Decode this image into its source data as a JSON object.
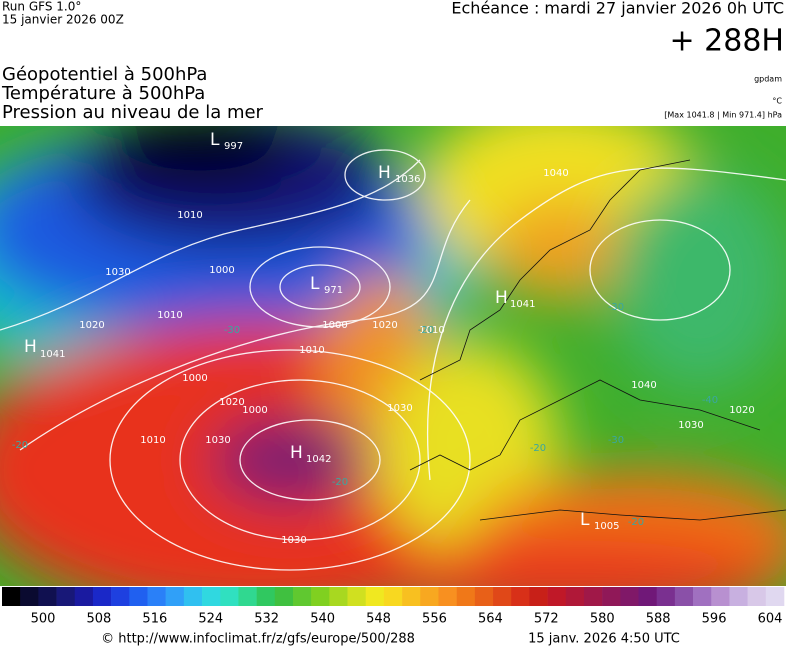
{
  "header": {
    "run": "Run GFS 1.0°",
    "run_date": "15 janvier 2026 00Z",
    "echeance": "Echéance : mardi 27 janvier 2026 0h UTC",
    "lead": "+ 288H",
    "titles": [
      "Géopotentiel à 500hPa",
      "Température à 500hPa",
      "Pression au niveau de la mer"
    ],
    "units": [
      "gpdam",
      "°C",
      "[Max 1041.8 | Min 971.4] hPa"
    ]
  },
  "map": {
    "centers": [
      {
        "symbol": "L",
        "value": "997"
      },
      {
        "symbol": "H",
        "value": "1036"
      },
      {
        "symbol": "L",
        "value": "971"
      },
      {
        "symbol": "H",
        "value": "1041"
      },
      {
        "symbol": "H",
        "value": "1042"
      },
      {
        "symbol": "H",
        "value": "1041"
      },
      {
        "symbol": "L",
        "value": "1005"
      }
    ],
    "isobar_labels": [
      "1010",
      "1000",
      "1030",
      "1020",
      "1010",
      "1000",
      "1000",
      "1010",
      "1020",
      "1010",
      "1030",
      "1000",
      "1030",
      "1040",
      "1040",
      "1030",
      "1020",
      "1010",
      "1030",
      "1020"
    ],
    "temperature_labels": [
      "-20",
      "-30",
      "-20",
      "-30",
      "-40",
      "-30",
      "-20",
      "-20",
      "-20"
    ]
  },
  "colorbar": {
    "ticks": [
      "500",
      "508",
      "516",
      "524",
      "532",
      "540",
      "548",
      "556",
      "564",
      "572",
      "580",
      "588",
      "596",
      "604"
    ]
  },
  "footer": {
    "source": "© http://www.infoclimat.fr/z/gfs/europe/500/288",
    "timestamp": "15 janv. 2026  4:50 UTC"
  }
}
